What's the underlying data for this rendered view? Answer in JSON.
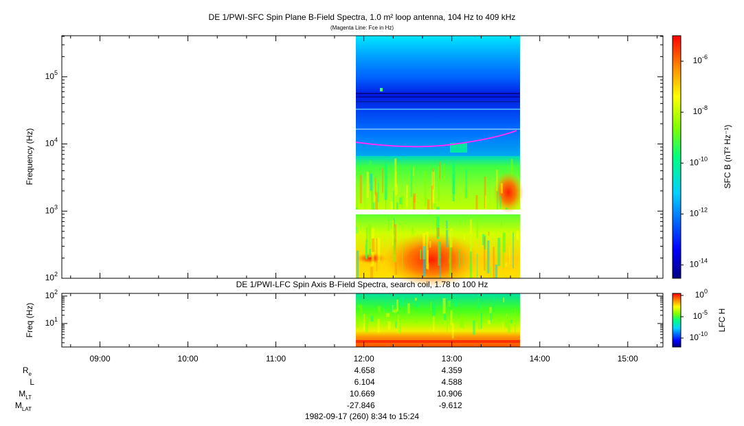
{
  "title": "DE 1/PWI-SFC  Spin Plane B-Field Spectra, 1.0 m² loop antenna, 104 Hz to 409 kHz",
  "subtitle": "(Magenta Line: Fce in Hz)",
  "panels": [
    {
      "title": null,
      "ylabel": "Frequency (Hz)",
      "ylim": [
        100,
        409000
      ],
      "yticks": [
        {
          "value": 100,
          "base": "10",
          "exp": "2"
        },
        {
          "value": 1000,
          "base": "10",
          "exp": "3"
        },
        {
          "value": 10000,
          "base": "10",
          "exp": "4"
        },
        {
          "value": 100000,
          "base": "10",
          "exp": "5"
        }
      ],
      "colorbar": {
        "label": "SFC B (nT² Hz⁻¹)",
        "zlim": [
          3e-15,
          1e-05
        ],
        "ticks": [
          {
            "value": 1e-06,
            "base": "10",
            "exp": "-6"
          },
          {
            "value": 1e-08,
            "base": "10",
            "exp": "-8"
          },
          {
            "value": 1e-10,
            "base": "10",
            "exp": "-10"
          },
          {
            "value": 1e-12,
            "base": "10",
            "exp": "-12"
          },
          {
            "value": 1e-14,
            "base": "10",
            "exp": "-14"
          }
        ]
      }
    },
    {
      "title": "DE 1/PWI-LFC  Spin Axis B-Field Spectra, search coil, 1.78 to 100 Hz",
      "ylabel": "Freq (Hz)",
      "ylim": [
        1.4,
        125
      ],
      "yticks": [
        {
          "value": 10,
          "base": "10",
          "exp": "1"
        },
        {
          "value": 100,
          "base": "10",
          "exp": "2"
        }
      ],
      "colorbar": {
        "label": "LFC H",
        "zlim": [
          8e-13,
          3
        ],
        "ticks": [
          {
            "value": 1,
            "base": "10",
            "exp": "0"
          },
          {
            "value": 1e-05,
            "base": "10",
            "exp": "-5"
          },
          {
            "value": 1e-10,
            "base": "10",
            "exp": "-10"
          }
        ]
      }
    }
  ],
  "xticks": [
    "09:00",
    "10:00",
    "11:00",
    "12:00",
    "13:00",
    "14:00",
    "15:00"
  ],
  "ephemeris": [
    {
      "label": "R",
      "sub": "e",
      "values": [
        "4.658",
        "4.359"
      ]
    },
    {
      "label": "L",
      "sub": null,
      "values": [
        "6.104",
        "4.588"
      ]
    },
    {
      "label": "M",
      "sub": "LT",
      "values": [
        "10.669",
        "10.906"
      ]
    },
    {
      "label": "M",
      "sub": "LAT",
      "values": [
        "-27.846",
        "-9.612"
      ]
    }
  ],
  "footer": {
    "date": "1982-09-17 (260)",
    "start": "8:34",
    "join": "to",
    "end": "15:24"
  }
}
